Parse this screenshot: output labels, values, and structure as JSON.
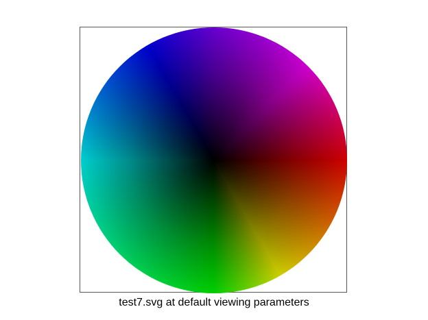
{
  "caption": "test7.svg at default viewing parameters",
  "wheel": {
    "colors": {
      "top": "#8000ff",
      "right": "#ff0000",
      "bottom": "#00ff00",
      "left": "#00ffff",
      "center": "#000000"
    }
  }
}
